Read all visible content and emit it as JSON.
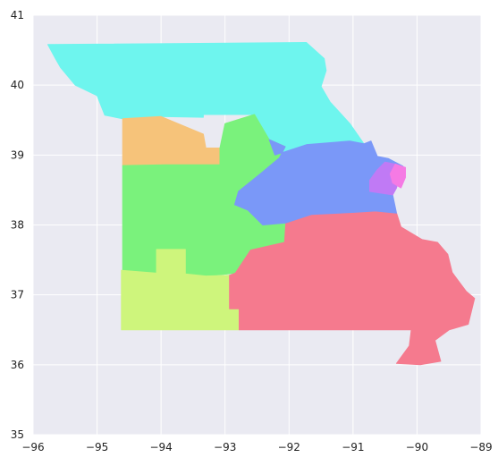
{
  "chart_data": {
    "type": "choropleth",
    "title": "",
    "xlabel": "",
    "ylabel": "",
    "xlim": [
      -96,
      -89
    ],
    "ylim": [
      35,
      41
    ],
    "x_ticks": [
      -96,
      -95,
      -94,
      -93,
      -92,
      -91,
      -90,
      -89
    ],
    "y_ticks": [
      35,
      36,
      37,
      38,
      39,
      40,
      41
    ],
    "x_tick_labels": [
      "−96",
      "−95",
      "−94",
      "−93",
      "−92",
      "−91",
      "−90",
      "−89"
    ],
    "y_tick_labels": [
      "35",
      "36",
      "37",
      "38",
      "39",
      "40",
      "41"
    ],
    "grid": true,
    "background_color": "#EAEAF2",
    "regions": [
      {
        "id": "region-north",
        "color": "#6EF5EE",
        "polygon": [
          [
            -95.77,
            40.58
          ],
          [
            -91.73,
            40.61
          ],
          [
            -91.45,
            40.38
          ],
          [
            -91.42,
            40.21
          ],
          [
            -91.5,
            39.98
          ],
          [
            -91.36,
            39.76
          ],
          [
            -91.05,
            39.45
          ],
          [
            -90.83,
            39.16
          ],
          [
            -91.72,
            39.15
          ],
          [
            -92.22,
            39.0
          ],
          [
            -92.31,
            39.22
          ],
          [
            -92.54,
            39.23
          ],
          [
            -92.54,
            39.58
          ],
          [
            -93.34,
            39.58
          ],
          [
            -93.34,
            39.54
          ],
          [
            -94.0,
            39.55
          ],
          [
            -94.6,
            39.52
          ],
          [
            -94.88,
            39.57
          ],
          [
            -95.0,
            39.85
          ],
          [
            -95.34,
            40.0
          ],
          [
            -95.57,
            40.25
          ],
          [
            -95.65,
            40.38
          ],
          [
            -95.77,
            40.58
          ]
        ]
      },
      {
        "id": "region-kansas-city",
        "color": "#F6C37A",
        "polygon": [
          [
            -94.6,
            39.52
          ],
          [
            -94.6,
            39.06
          ],
          [
            -94.6,
            38.85
          ],
          [
            -93.93,
            38.86
          ],
          [
            -93.5,
            38.86
          ],
          [
            -93.08,
            38.86
          ],
          [
            -93.08,
            39.1
          ],
          [
            -93.3,
            39.1
          ],
          [
            -93.34,
            39.3
          ],
          [
            -94.0,
            39.55
          ],
          [
            -94.6,
            39.52
          ]
        ]
      },
      {
        "id": "region-central-west",
        "color": "#7AF27C",
        "polygon": [
          [
            -94.6,
            38.85
          ],
          [
            -94.6,
            37.35
          ],
          [
            -94.07,
            37.31
          ],
          [
            -93.62,
            37.3
          ],
          [
            -93.3,
            37.27
          ],
          [
            -92.84,
            37.31
          ],
          [
            -92.6,
            37.64
          ],
          [
            -92.07,
            37.75
          ],
          [
            -92.05,
            38.03
          ],
          [
            -92.41,
            38.0
          ],
          [
            -92.64,
            38.21
          ],
          [
            -92.85,
            38.29
          ],
          [
            -92.79,
            38.48
          ],
          [
            -92.45,
            38.73
          ],
          [
            -92.15,
            38.96
          ],
          [
            -92.06,
            39.12
          ],
          [
            -92.31,
            39.22
          ],
          [
            -92.54,
            39.58
          ],
          [
            -93.0,
            39.45
          ],
          [
            -93.08,
            39.1
          ],
          [
            -93.08,
            38.86
          ],
          [
            -93.5,
            38.86
          ],
          [
            -93.93,
            38.86
          ],
          [
            -94.6,
            38.85
          ]
        ]
      },
      {
        "id": "region-southwest",
        "color": "#CEF57C",
        "polygon": [
          [
            -94.62,
            37.35
          ],
          [
            -94.62,
            36.5
          ],
          [
            -92.78,
            36.5
          ],
          [
            -92.78,
            36.8
          ],
          [
            -92.93,
            36.8
          ],
          [
            -92.93,
            37.28
          ],
          [
            -93.3,
            37.27
          ],
          [
            -93.62,
            37.3
          ],
          [
            -93.62,
            37.65
          ],
          [
            -94.07,
            37.65
          ],
          [
            -94.07,
            37.31
          ],
          [
            -94.62,
            37.35
          ]
        ]
      },
      {
        "id": "region-southeast",
        "color": "#F57A8E",
        "polygon": [
          [
            -92.93,
            37.28
          ],
          [
            -92.84,
            37.31
          ],
          [
            -92.6,
            37.64
          ],
          [
            -92.07,
            37.75
          ],
          [
            -92.05,
            38.03
          ],
          [
            -91.65,
            38.15
          ],
          [
            -90.98,
            38.18
          ],
          [
            -90.65,
            38.2
          ],
          [
            -90.32,
            38.17
          ],
          [
            -90.25,
            37.97
          ],
          [
            -89.92,
            37.79
          ],
          [
            -89.68,
            37.75
          ],
          [
            -89.52,
            37.58
          ],
          [
            -89.45,
            37.32
          ],
          [
            -89.23,
            37.05
          ],
          [
            -89.1,
            36.95
          ],
          [
            -89.2,
            36.58
          ],
          [
            -89.5,
            36.5
          ],
          [
            -89.72,
            36.35
          ],
          [
            -89.63,
            36.05
          ],
          [
            -89.95,
            36.0
          ],
          [
            -90.32,
            36.02
          ],
          [
            -90.12,
            36.27
          ],
          [
            -90.09,
            36.5
          ],
          [
            -92.78,
            36.5
          ],
          [
            -92.78,
            36.8
          ],
          [
            -92.93,
            36.8
          ],
          [
            -92.93,
            37.28
          ]
        ]
      },
      {
        "id": "region-east-central",
        "color": "#7A98F8",
        "polygon": [
          [
            -92.31,
            39.22
          ],
          [
            -92.06,
            39.12
          ],
          [
            -92.15,
            38.96
          ],
          [
            -92.45,
            38.73
          ],
          [
            -92.79,
            38.48
          ],
          [
            -92.85,
            38.29
          ],
          [
            -92.64,
            38.21
          ],
          [
            -92.41,
            38.0
          ],
          [
            -92.05,
            38.03
          ],
          [
            -91.65,
            38.15
          ],
          [
            -90.98,
            38.18
          ],
          [
            -90.65,
            38.2
          ],
          [
            -90.32,
            38.17
          ],
          [
            -90.38,
            38.43
          ],
          [
            -90.32,
            38.66
          ],
          [
            -90.22,
            38.84
          ],
          [
            -90.45,
            38.95
          ],
          [
            -90.62,
            38.98
          ],
          [
            -90.72,
            39.2
          ],
          [
            -90.83,
            39.16
          ],
          [
            -91.05,
            39.2
          ],
          [
            -91.72,
            39.15
          ],
          [
            -92.22,
            39.0
          ],
          [
            -92.31,
            39.22
          ]
        ]
      },
      {
        "id": "region-st-louis-county",
        "color": "#C07AF5",
        "polygon": [
          [
            -90.74,
            38.48
          ],
          [
            -90.38,
            38.43
          ],
          [
            -90.32,
            38.53
          ],
          [
            -90.28,
            38.68
          ],
          [
            -90.18,
            38.82
          ],
          [
            -90.34,
            38.87
          ],
          [
            -90.5,
            38.9
          ],
          [
            -90.62,
            38.79
          ],
          [
            -90.74,
            38.64
          ],
          [
            -90.74,
            38.48
          ]
        ]
      },
      {
        "id": "region-st-louis-city",
        "color": "#F57AE4",
        "polygon": [
          [
            -90.34,
            38.87
          ],
          [
            -90.18,
            38.82
          ],
          [
            -90.18,
            38.68
          ],
          [
            -90.25,
            38.53
          ],
          [
            -90.38,
            38.6
          ],
          [
            -90.42,
            38.73
          ],
          [
            -90.34,
            38.87
          ]
        ]
      }
    ]
  }
}
